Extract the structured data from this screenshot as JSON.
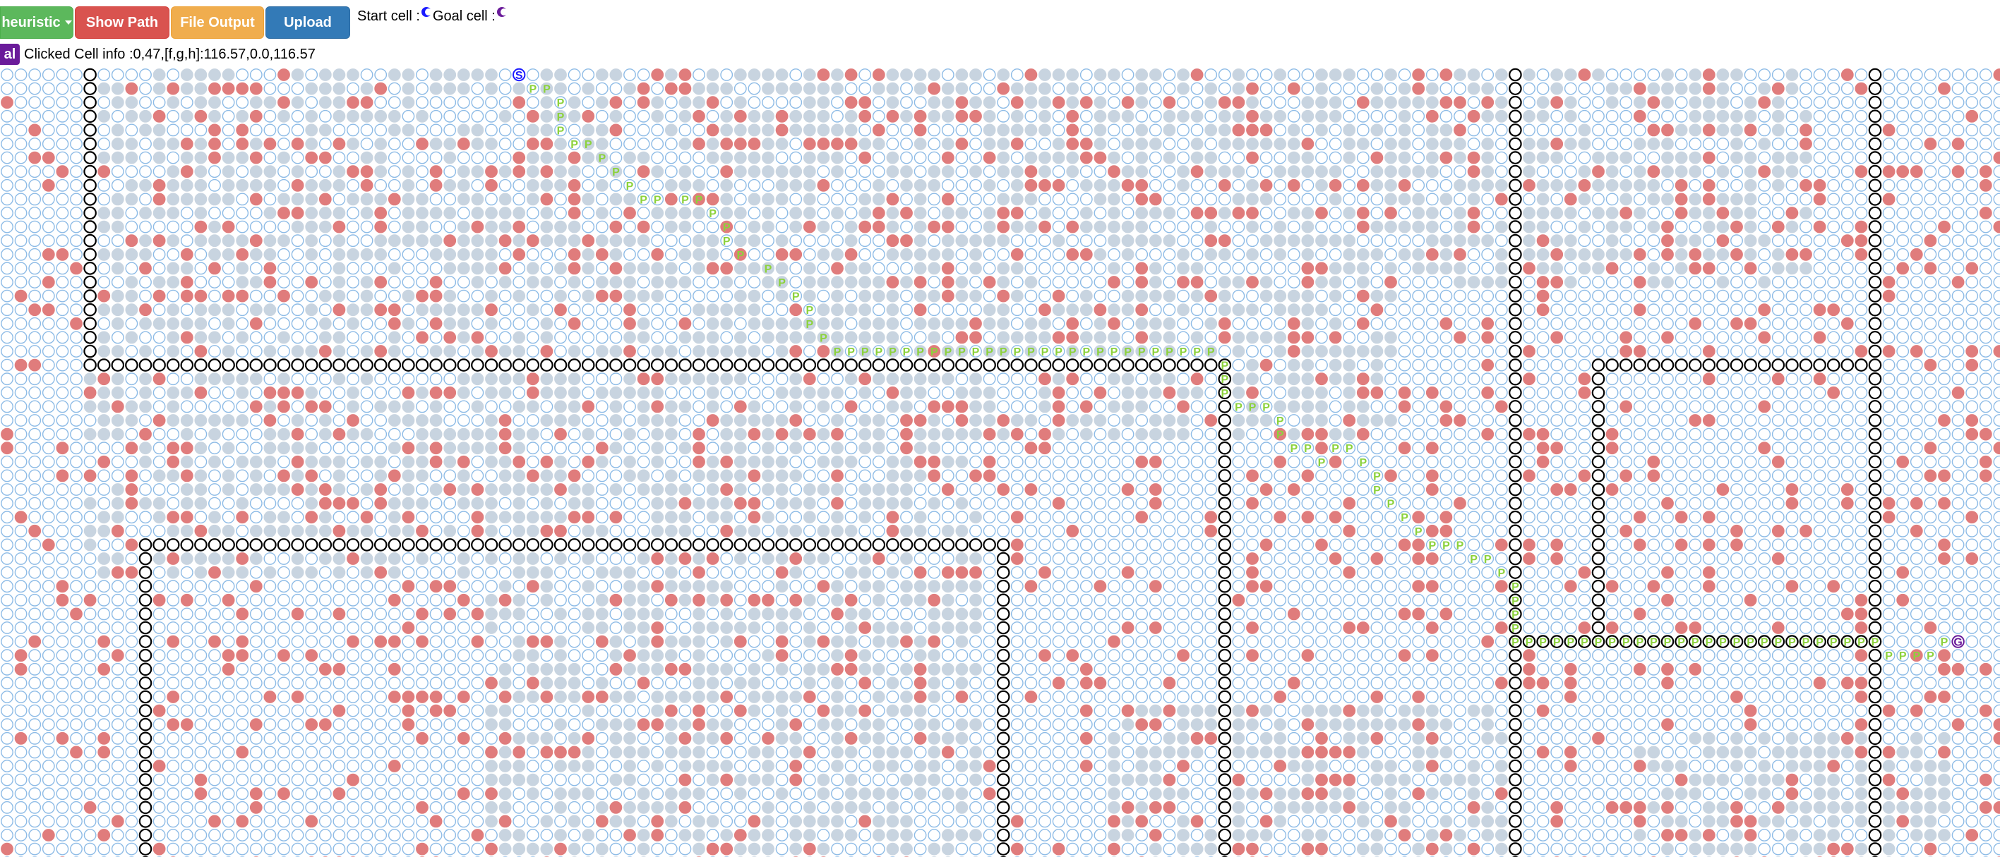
{
  "toolbar": {
    "heuristic_label": "heuristic",
    "show_path_label": "Show Path",
    "file_output_label": "File Output",
    "upload_label": "Upload"
  },
  "legend": {
    "start_label": "Start cell :",
    "goal_label": "Goal cell :"
  },
  "info": {
    "tag_label": "al",
    "clicked_text": "Clicked Cell info :0,47,[f,g,h]:116.57,0.0,116.57"
  },
  "grid": {
    "start_glyph": "S",
    "goal_glyph": "G",
    "path_glyph": "P",
    "cols": 145,
    "rows": 60
  },
  "colors": {
    "blocked": "#e07c7c",
    "hard": "#c8d4e0",
    "empty_outline": "#8dbbe6",
    "highway_outline": "#000000",
    "path": "#8cd23c",
    "start": "#1a1aff",
    "goal": "#6a1b9a"
  }
}
